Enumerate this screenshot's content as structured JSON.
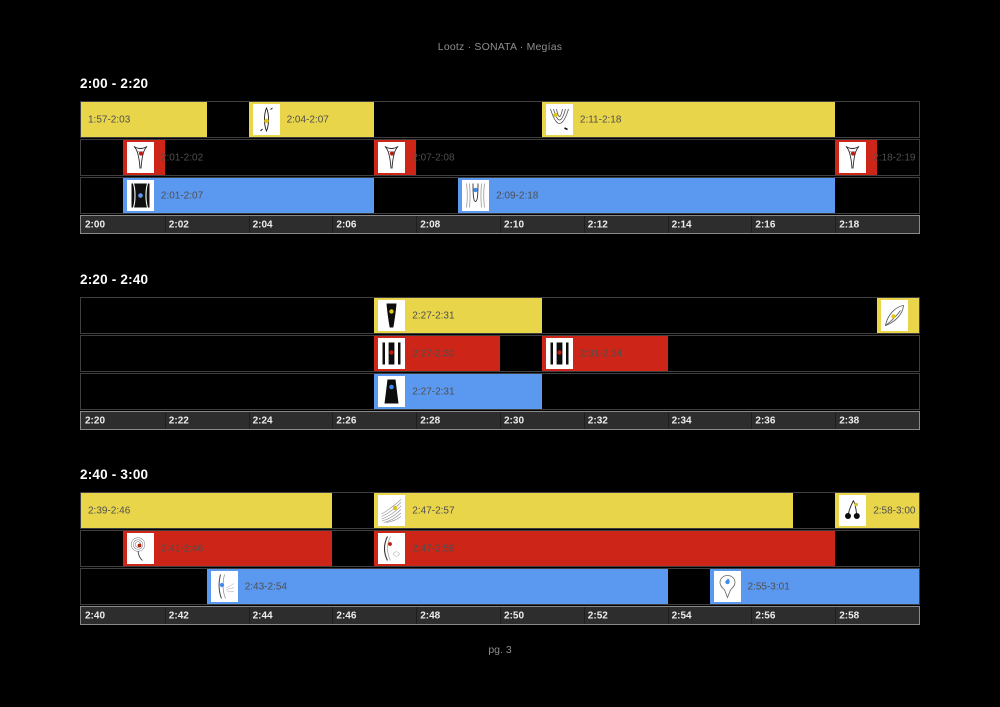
{
  "header": {
    "title": "Lootz · SONATA · Megías"
  },
  "footer": {
    "page_label": "pg. 3"
  },
  "colors": {
    "yellow": "#e8d54a",
    "red": "#cd2517",
    "blue": "#5b99f1",
    "axis_bg": "#2d2d2d",
    "axis_text": "#ededed",
    "row_border": "#3f3f3f",
    "segment_label": "#4f4f4f",
    "page_text": "#8e8e8e",
    "background": "#000000"
  },
  "chart_data": {
    "type": "timeline",
    "axis_unit": "min:sec",
    "tick_interval": "0:02",
    "sections": [
      {
        "title": "2:00 - 2:20",
        "range": [
          "2:00",
          "2:20"
        ],
        "ticks": [
          "2:00",
          "2:02",
          "2:04",
          "2:06",
          "2:08",
          "2:10",
          "2:12",
          "2:14",
          "2:16",
          "2:18"
        ],
        "rows": [
          {
            "color": "yellow",
            "segments": [
              {
                "start": "1:57",
                "end": "2:03",
                "label": "1:57-2:03",
                "icon": null
              },
              {
                "start": "2:04",
                "end": "2:07",
                "label": "2:04-2:07",
                "icon": "pod-icon"
              },
              {
                "start": "2:11",
                "end": "2:18",
                "label": "2:11-2:18",
                "icon": "nested-arcs-icon"
              }
            ]
          },
          {
            "color": "red",
            "segments": [
              {
                "start": "2:01",
                "end": "2:02",
                "label": "2:01-2:02",
                "icon": "funnel-icon"
              },
              {
                "start": "2:07",
                "end": "2:08",
                "label": "2:07-2:08",
                "icon": "funnel-icon"
              },
              {
                "start": "2:18",
                "end": "2:19",
                "label": "2:18-2:19",
                "icon": "funnel-icon"
              }
            ]
          },
          {
            "color": "blue",
            "segments": [
              {
                "start": "2:01",
                "end": "2:07",
                "label": "2:01-2:07",
                "icon": "curtain-icon"
              },
              {
                "start": "2:09",
                "end": "2:18",
                "label": "2:09-2:18",
                "icon": "grooved-u-icon"
              }
            ]
          }
        ]
      },
      {
        "title": "2:20 - 2:40",
        "range": [
          "2:20",
          "2:40"
        ],
        "ticks": [
          "2:20",
          "2:22",
          "2:24",
          "2:26",
          "2:28",
          "2:30",
          "2:32",
          "2:34",
          "2:36",
          "2:38"
        ],
        "rows": [
          {
            "color": "yellow",
            "segments": [
              {
                "start": "2:27",
                "end": "2:31",
                "label": "2:27-2:31",
                "icon": "wedge-icon"
              },
              {
                "start": "2:39",
                "end": "2:46",
                "label": "",
                "icon": "leaf-icon"
              }
            ]
          },
          {
            "color": "red",
            "segments": [
              {
                "start": "2:27",
                "end": "2:30",
                "label": "2:27-2:30",
                "icon": "banded-square-icon"
              },
              {
                "start": "2:31",
                "end": "2:34",
                "label": "2:31-2:34",
                "icon": "banded-square-icon"
              }
            ]
          },
          {
            "color": "blue",
            "segments": [
              {
                "start": "2:27",
                "end": "2:31",
                "label": "2:27-2:31",
                "icon": "trapezoid-icon"
              }
            ]
          }
        ]
      },
      {
        "title": "2:40 - 3:00",
        "range": [
          "2:40",
          "3:00"
        ],
        "ticks": [
          "2:40",
          "2:42",
          "2:44",
          "2:46",
          "2:48",
          "2:50",
          "2:52",
          "2:54",
          "2:56",
          "2:58"
        ],
        "rows": [
          {
            "color": "yellow",
            "segments": [
              {
                "start": "2:39",
                "end": "2:46",
                "label": "2:39-2:46",
                "icon": null
              },
              {
                "start": "2:47",
                "end": "2:57",
                "label": "2:47-2:57",
                "icon": "fan-icon"
              },
              {
                "start": "2:58",
                "end": "3:00",
                "label": "2:58-3:00",
                "icon": "cherries-icon"
              }
            ]
          },
          {
            "color": "red",
            "segments": [
              {
                "start": "2:41",
                "end": "2:46",
                "label": "2:41-2:46",
                "icon": "spiral-icon"
              },
              {
                "start": "2:47",
                "end": "2:58",
                "label": "2:47-2:58",
                "icon": "arc-swirl-icon"
              }
            ]
          },
          {
            "color": "blue",
            "segments": [
              {
                "start": "2:43",
                "end": "2:54",
                "label": "2:43-2:54",
                "icon": "curved-lines-icon"
              },
              {
                "start": "2:55",
                "end": "3:01",
                "label": "2:55-3:01",
                "icon": "pin-icon"
              }
            ]
          }
        ]
      }
    ]
  }
}
